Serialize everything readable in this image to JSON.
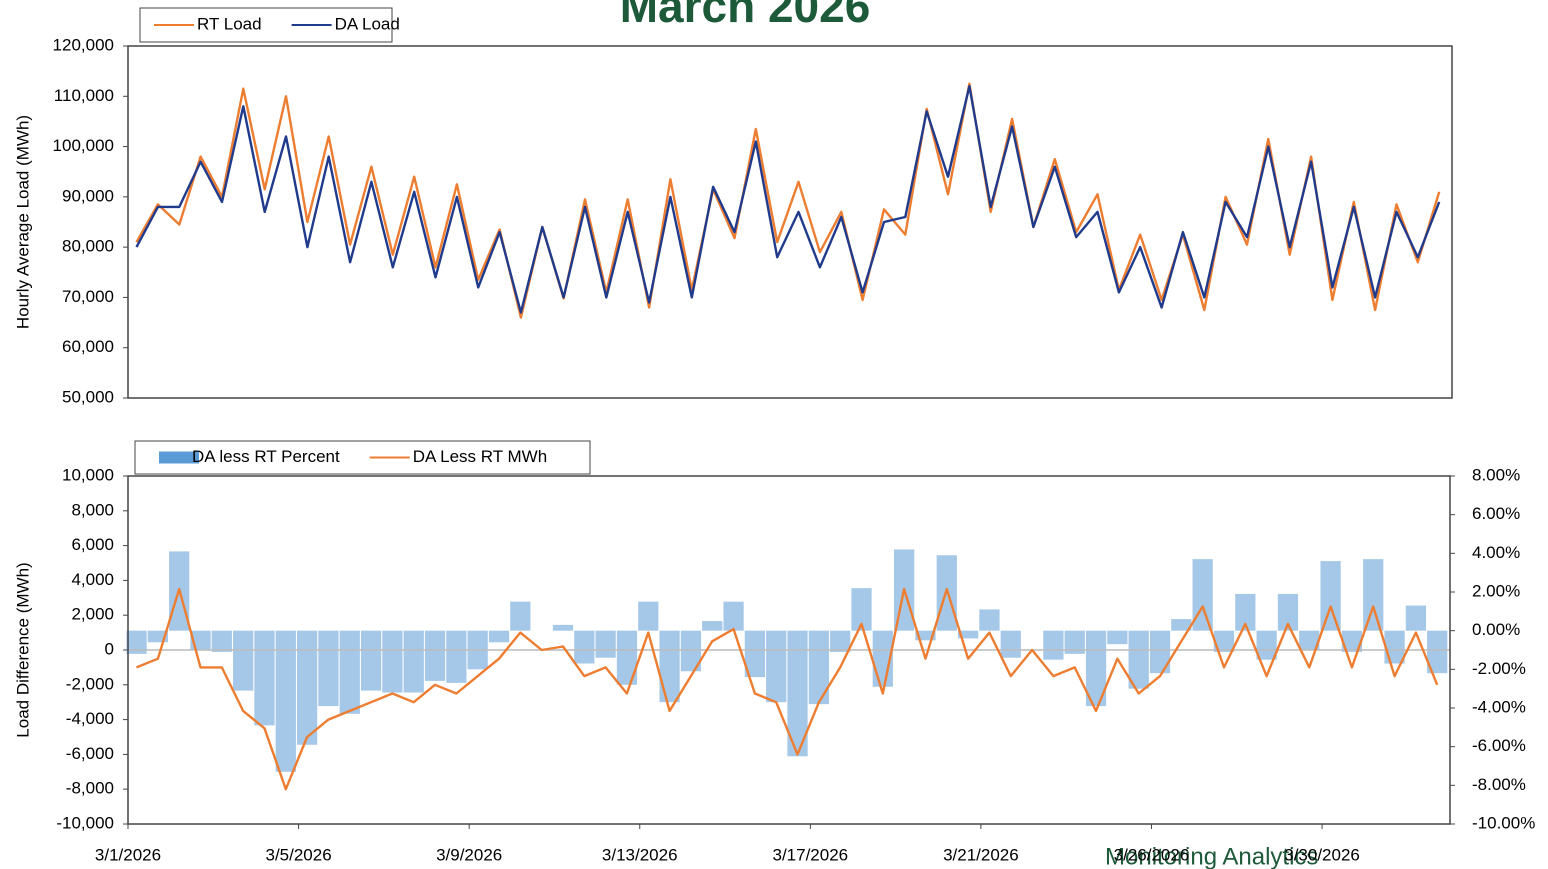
{
  "title": "March 2026",
  "logo_text": "Monitoring Analytics",
  "chart_data": [
    {
      "type": "line",
      "ylabel": "Hourly Average Load (MWh)",
      "x": [
        1.2,
        1.7,
        2.2,
        2.7,
        3.2,
        3.7,
        4.2,
        4.7,
        5.2,
        5.7,
        6.2,
        6.7,
        7.2,
        7.7,
        8.2,
        8.7,
        9.2,
        9.7,
        10.2,
        10.7,
        11.2,
        11.7,
        12.2,
        12.7,
        13.2,
        13.7,
        14.2,
        14.7,
        15.2,
        15.7,
        16.2,
        16.7,
        17.2,
        17.7,
        18.2,
        18.7,
        19.2,
        19.7,
        20.2,
        20.7,
        21.2,
        21.7,
        22.2,
        22.7,
        23.2,
        23.7,
        24.2,
        24.7,
        25.2,
        25.7,
        26.2,
        26.7,
        27.2,
        27.7,
        28.2,
        28.7,
        29.2,
        29.7,
        30.2,
        30.7,
        31.2,
        31.7
      ],
      "xlim": [
        1,
        32
      ],
      "ylim": [
        50000,
        120000
      ],
      "yticks": [
        {
          "value": 50000,
          "label": "50,000"
        },
        {
          "value": 60000,
          "label": "60,000"
        },
        {
          "value": 70000,
          "label": "70,000"
        },
        {
          "value": 80000,
          "label": "80,000"
        },
        {
          "value": 90000,
          "label": "90,000"
        },
        {
          "value": 100000,
          "label": "100,000"
        },
        {
          "value": 110000,
          "label": "110,000"
        },
        {
          "value": 120000,
          "label": "120,000"
        }
      ],
      "series": [
        {
          "name": "RT Load",
          "color": "#ed7d31",
          "values": [
            81000,
            88500,
            84500,
            98000,
            90000,
            111500,
            91500,
            110000,
            85000,
            102000,
            80500,
            96000,
            78500,
            94000,
            76000,
            92500,
            73500,
            83500,
            66000,
            84000,
            69800,
            89500,
            71000,
            89500,
            68000,
            93500,
            71500,
            91500,
            81800,
            103500,
            81000,
            93000,
            79000,
            87000,
            69500,
            87500,
            82500,
            107500,
            90500,
            112500,
            87000,
            105500,
            84000,
            97500,
            83000,
            90500,
            71500,
            82500,
            69500,
            82500,
            67500,
            90000,
            80500,
            101500,
            78500,
            98000,
            69500,
            89000,
            67500,
            88500,
            77000,
            91000
          ]
        },
        {
          "name": "DA Load",
          "color": "#203a8c",
          "values": [
            80000,
            88000,
            88000,
            97000,
            89000,
            108000,
            87000,
            102000,
            80000,
            98000,
            77000,
            93000,
            76000,
            91000,
            74000,
            90000,
            72000,
            83000,
            67000,
            84000,
            70000,
            88000,
            70000,
            87000,
            69000,
            90000,
            70000,
            92000,
            83000,
            101000,
            78000,
            87000,
            76000,
            86000,
            71000,
            85000,
            86000,
            107000,
            94000,
            112000,
            88000,
            104000,
            84000,
            96000,
            82000,
            87000,
            71000,
            80000,
            68000,
            83000,
            70000,
            89000,
            82000,
            100000,
            80000,
            97000,
            72000,
            88000,
            70000,
            87000,
            78000,
            89000
          ]
        }
      ]
    },
    {
      "type": "combo",
      "ylabel": "Load Difference (MWh)",
      "x": [
        1.2,
        1.7,
        2.2,
        2.7,
        3.2,
        3.7,
        4.2,
        4.7,
        5.2,
        5.7,
        6.2,
        6.7,
        7.2,
        7.7,
        8.2,
        8.7,
        9.2,
        9.7,
        10.2,
        10.7,
        11.2,
        11.7,
        12.2,
        12.7,
        13.2,
        13.7,
        14.2,
        14.7,
        15.2,
        15.7,
        16.2,
        16.7,
        17.2,
        17.7,
        18.2,
        18.7,
        19.2,
        19.7,
        20.2,
        20.7,
        21.2,
        21.7,
        22.2,
        22.7,
        23.2,
        23.7,
        24.2,
        24.7,
        25.2,
        25.7,
        26.2,
        26.7,
        27.2,
        27.7,
        28.2,
        28.7,
        29.2,
        29.7,
        30.2,
        30.7,
        31.2,
        31.7
      ],
      "xlim": [
        1,
        32
      ],
      "xticks": [
        {
          "value": 1,
          "label": "3/1/2026"
        },
        {
          "value": 5,
          "label": "3/5/2026"
        },
        {
          "value": 9,
          "label": "3/9/2026"
        },
        {
          "value": 13,
          "label": "3/13/2026"
        },
        {
          "value": 17,
          "label": "3/17/2026"
        },
        {
          "value": 21,
          "label": "3/21/2026"
        },
        {
          "value": 25,
          "label": "3/26/2026"
        },
        {
          "value": 29,
          "label": "3/30/2026"
        }
      ],
      "ylim": [
        -10000,
        10000
      ],
      "yticks": [
        {
          "value": -10000,
          "label": "-10,000"
        },
        {
          "value": -8000,
          "label": "-8,000"
        },
        {
          "value": -6000,
          "label": "-6,000"
        },
        {
          "value": -4000,
          "label": "-4,000"
        },
        {
          "value": -2000,
          "label": "-2,000"
        },
        0,
        {
          "value": 2000,
          "label": "2,000"
        },
        {
          "value": 4000,
          "label": "4,000"
        },
        {
          "value": 6000,
          "label": "6,000"
        },
        {
          "value": 8000,
          "label": "8,000"
        },
        {
          "value": 10000,
          "label": "10,000"
        }
      ],
      "y2lim": [
        -10,
        8
      ],
      "y2ticks": [
        {
          "value": -10,
          "label": "-10.00%"
        },
        {
          "value": -8,
          "label": "-8.00%"
        },
        {
          "value": -6,
          "label": "-6.00%"
        },
        {
          "value": -4,
          "label": "-4.00%"
        },
        {
          "value": -2,
          "label": "-2.00%"
        },
        {
          "value": 0,
          "label": "0.00%"
        },
        {
          "value": 2,
          "label": "2.00%"
        },
        {
          "value": 4,
          "label": "4.00%"
        },
        {
          "value": 6,
          "label": "6.00%"
        },
        {
          "value": 8,
          "label": "8.00%"
        }
      ],
      "series": [
        {
          "name": "DA less RT Percent",
          "kind": "bar",
          "axis": "y2",
          "color": "#5b9bd5",
          "values": [
            -1.2,
            -0.6,
            4.1,
            -1.0,
            -1.1,
            -3.1,
            -4.9,
            -7.3,
            -5.9,
            -3.9,
            -4.3,
            -3.1,
            -3.2,
            -3.2,
            -2.6,
            -2.7,
            -2.0,
            -0.6,
            1.5,
            0.0,
            0.3,
            -1.7,
            -1.4,
            -2.8,
            1.5,
            -3.7,
            -2.1,
            0.5,
            1.5,
            -2.4,
            -3.7,
            -6.5,
            -3.8,
            -1.1,
            2.2,
            -2.9,
            4.2,
            -0.5,
            3.9,
            -0.4,
            1.1,
            -1.4,
            0.0,
            -1.5,
            -1.2,
            -3.9,
            -0.7,
            -3.0,
            -2.2,
            0.6,
            3.7,
            -1.1,
            1.9,
            -1.5,
            1.9,
            -1.0,
            3.6,
            -1.1,
            3.7,
            -1.7,
            1.3,
            -2.2
          ]
        },
        {
          "name": "DA Less RT MWh",
          "kind": "line",
          "color": "#ed7d31",
          "values": [
            -1000,
            -500,
            3500,
            -1000,
            -1000,
            -3500,
            -4500,
            -8000,
            -5000,
            -4000,
            -3500,
            -3000,
            -2500,
            -3000,
            -2000,
            -2500,
            -1500,
            -500,
            1000,
            0,
            200,
            -1500,
            -1000,
            -2500,
            1000,
            -3500,
            -1500,
            500,
            1200,
            -2500,
            -3000,
            -6000,
            -3000,
            -1000,
            1500,
            -2500,
            3500,
            -500,
            3500,
            -500,
            1000,
            -1500,
            0,
            -1500,
            -1000,
            -3500,
            -500,
            -2500,
            -1500,
            500,
            2500,
            -1000,
            1500,
            -1500,
            1500,
            -1000,
            2500,
            -1000,
            2500,
            -1500,
            1000,
            -2000
          ]
        }
      ]
    }
  ]
}
